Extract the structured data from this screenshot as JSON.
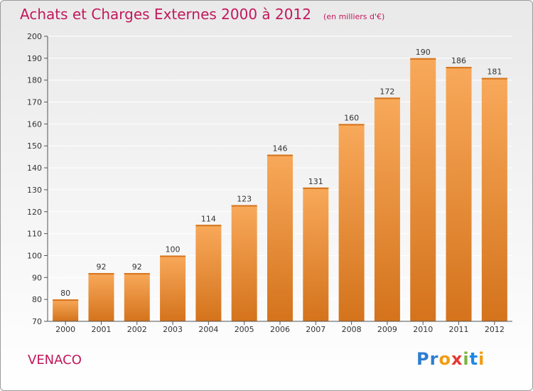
{
  "header": {
    "title": "Achats et Charges Externes 2000 à 2012",
    "unit": "(en milliers d'€)"
  },
  "footer": {
    "commune": "VENACO",
    "brand_letters": [
      "P",
      "r",
      "o",
      "x",
      "i",
      "t",
      "i"
    ],
    "brand_colors": [
      "#2f7dd1",
      "#2f7dd1",
      "#f39c12",
      "#e53935",
      "#7cb342",
      "#1e88e5",
      "#f39c12"
    ]
  },
  "colors": {
    "title": "#c2185b",
    "bar_light": "#f8a95a",
    "bar_dark": "#d4731c",
    "axis": "#555555",
    "grid": "#ffffff"
  },
  "chart_data": {
    "type": "bar",
    "categories": [
      "2000",
      "2001",
      "2002",
      "2003",
      "2004",
      "2005",
      "2006",
      "2007",
      "2008",
      "2009",
      "2010",
      "2011",
      "2012"
    ],
    "values": [
      80,
      92,
      92,
      100,
      114,
      123,
      146,
      131,
      160,
      172,
      190,
      186,
      181
    ],
    "ylim": [
      70,
      200
    ],
    "yticks": [
      70,
      80,
      90,
      100,
      110,
      120,
      130,
      140,
      150,
      160,
      170,
      180,
      190,
      200
    ],
    "grid": true,
    "data_labels": true
  }
}
